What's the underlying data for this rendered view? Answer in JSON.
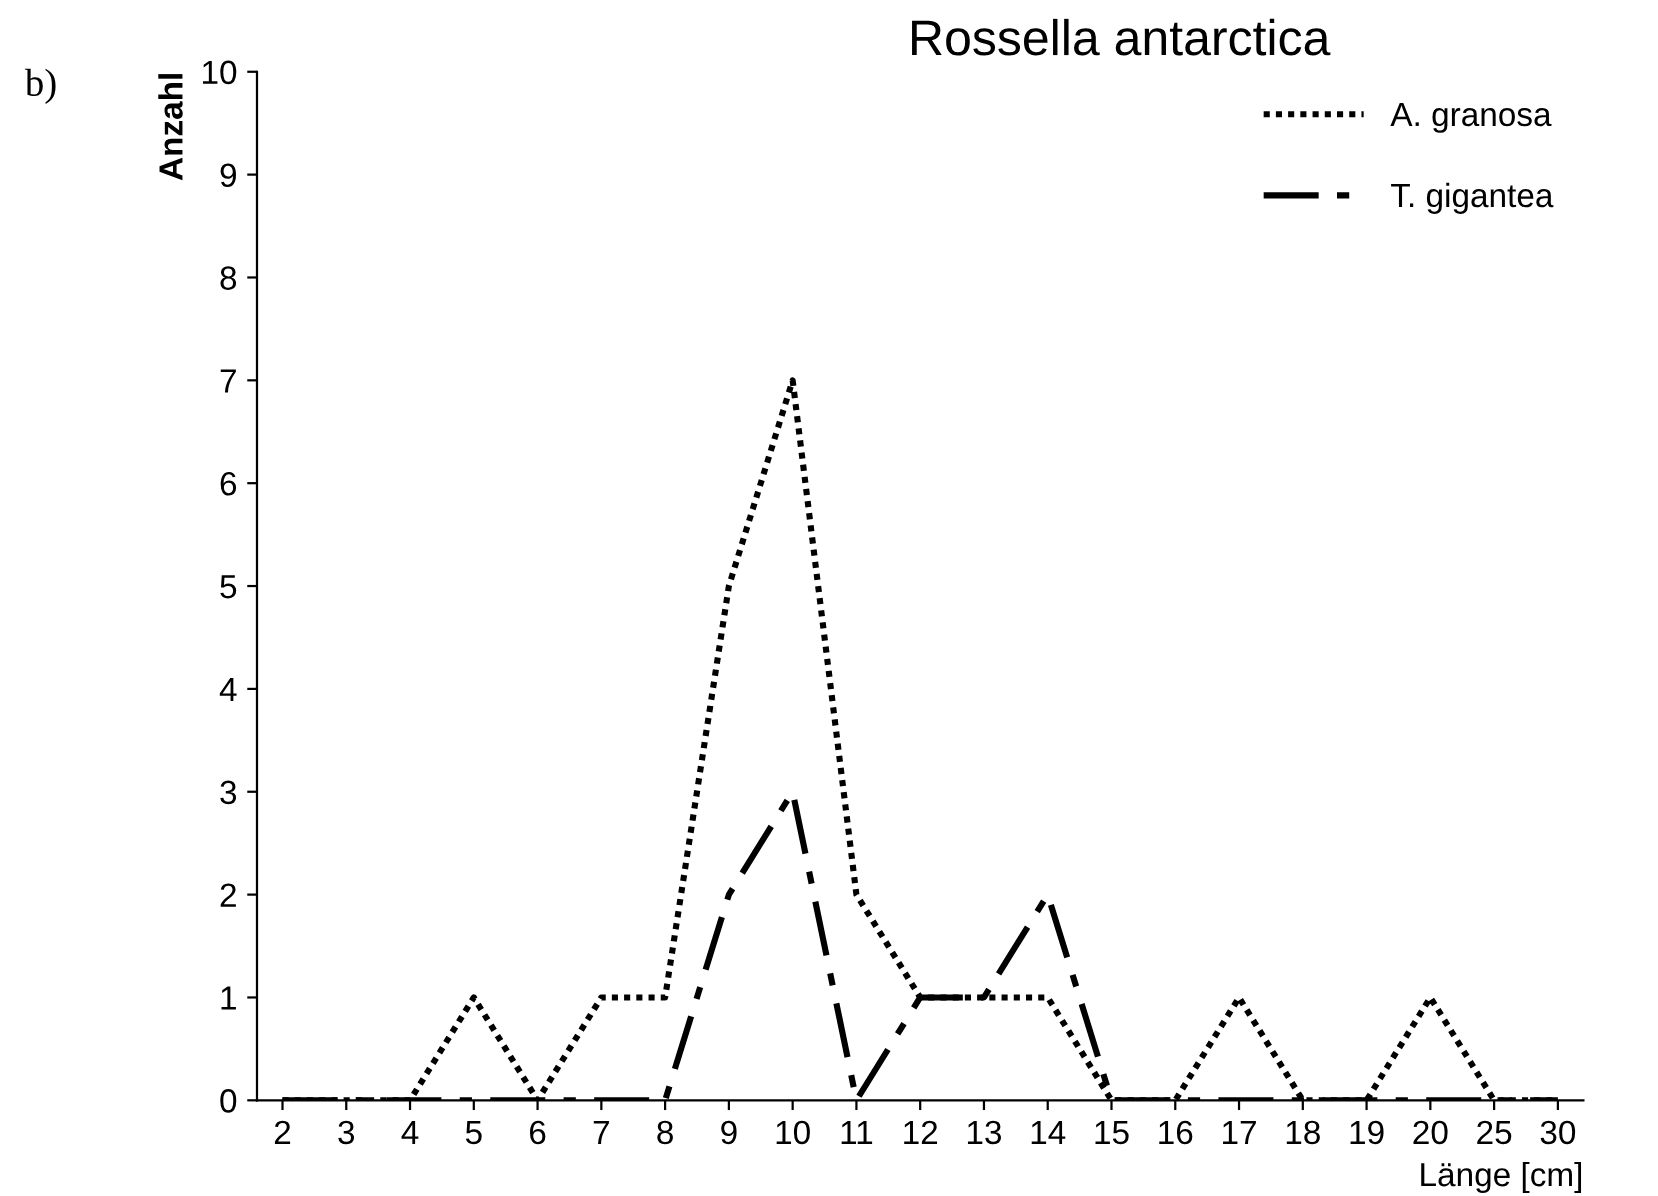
{
  "chart_data": {
    "type": "line",
    "title": "Rossella antarctica",
    "xlabel": "Länge [cm]",
    "ylabel": "Anzahl",
    "annotations": [
      "b)"
    ],
    "categories": [
      "2",
      "3",
      "4",
      "5",
      "6",
      "7",
      "8",
      "9",
      "10",
      "11",
      "12",
      "13",
      "14",
      "15",
      "16",
      "17",
      "18",
      "19",
      "20",
      "25",
      "30"
    ],
    "series": [
      {
        "name": "A. granosa",
        "color": "#000000",
        "line_style": "dotted",
        "values": [
          0,
          0,
          0,
          1,
          0,
          1,
          1,
          5,
          7,
          2,
          1,
          1,
          1,
          0,
          0,
          1,
          0,
          0,
          1,
          0,
          0
        ]
      },
      {
        "name": "T. gigantea",
        "color": "#000000",
        "line_style": "dashed",
        "values": [
          0,
          0,
          0,
          0,
          0,
          0,
          0,
          2,
          3,
          0,
          1,
          1,
          2,
          0,
          0,
          0,
          0,
          0,
          0,
          0,
          0
        ]
      }
    ],
    "ylim": [
      0,
      10
    ],
    "yticks": [
      0,
      1,
      2,
      3,
      4,
      5,
      6,
      7,
      8,
      9,
      10
    ],
    "grid": false,
    "legend": "top right",
    "marker": "none"
  }
}
